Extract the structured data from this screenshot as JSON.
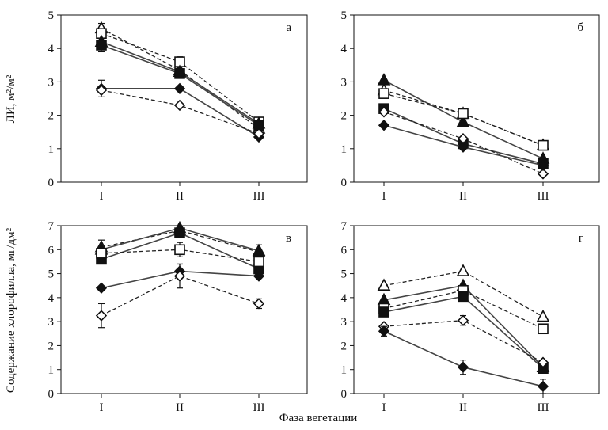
{
  "figure": {
    "ylabel_top": "ЛИ, м²/м²",
    "ylabel_bottom": "Содержание хлорофилла, мг/дм²",
    "xlabel": "Фаза вегетации"
  },
  "chart_data": [
    {
      "type": "line",
      "panel": "а",
      "categories": [
        "I",
        "II",
        "III"
      ],
      "ylim": [
        0,
        5
      ],
      "yticks": [
        0,
        1,
        2,
        3,
        4,
        5
      ],
      "series": [
        {
          "name": "open triangle, dashed",
          "marker": "triangle-open",
          "dash": true,
          "values": [
            4.6,
            3.35,
            1.6
          ],
          "errors": [
            0.15,
            0,
            0
          ]
        },
        {
          "name": "open square, dashed",
          "marker": "square-open",
          "dash": true,
          "values": [
            4.45,
            3.6,
            1.8
          ],
          "errors": [
            0,
            0.15,
            0
          ]
        },
        {
          "name": "filled triangle, solid",
          "marker": "triangle-filled",
          "dash": false,
          "values": [
            4.2,
            3.3,
            1.75
          ],
          "errors": [
            0,
            0,
            0
          ]
        },
        {
          "name": "filled square, solid",
          "marker": "square-filled",
          "dash": false,
          "values": [
            4.1,
            3.25,
            1.7
          ],
          "errors": [
            0.2,
            0,
            0
          ]
        },
        {
          "name": "filled diamond, solid",
          "marker": "diamond-filled",
          "dash": false,
          "values": [
            2.8,
            2.8,
            1.35
          ],
          "errors": [
            0.25,
            0,
            0
          ]
        },
        {
          "name": "open diamond, dashed",
          "marker": "diamond-open",
          "dash": true,
          "values": [
            2.75,
            2.3,
            1.45
          ],
          "errors": [
            0,
            0,
            0
          ]
        }
      ]
    },
    {
      "type": "line",
      "panel": "б",
      "categories": [
        "I",
        "II",
        "III"
      ],
      "ylim": [
        0,
        5
      ],
      "yticks": [
        0,
        1,
        2,
        3,
        4,
        5
      ],
      "series": [
        {
          "name": "filled triangle, solid",
          "marker": "triangle-filled",
          "dash": false,
          "values": [
            3.05,
            1.8,
            0.7
          ],
          "errors": [
            0,
            0,
            0
          ]
        },
        {
          "name": "open triangle, dashed",
          "marker": "triangle-open",
          "dash": true,
          "values": [
            2.75,
            2.05,
            1.1
          ],
          "errors": [
            0,
            0,
            0
          ]
        },
        {
          "name": "open square, dashed",
          "marker": "square-open",
          "dash": true,
          "values": [
            2.65,
            2.05,
            1.1
          ],
          "errors": [
            0,
            0.15,
            0
          ]
        },
        {
          "name": "filled square, solid",
          "marker": "square-filled",
          "dash": false,
          "values": [
            2.2,
            1.15,
            0.55
          ],
          "errors": [
            0,
            0,
            0
          ]
        },
        {
          "name": "open diamond, dashed",
          "marker": "diamond-open",
          "dash": true,
          "values": [
            2.1,
            1.3,
            0.25
          ],
          "errors": [
            0,
            0,
            0
          ]
        },
        {
          "name": "filled diamond, solid",
          "marker": "diamond-filled",
          "dash": false,
          "values": [
            1.7,
            1.05,
            0.5
          ],
          "errors": [
            0,
            0,
            0
          ]
        }
      ]
    },
    {
      "type": "line",
      "panel": "в",
      "categories": [
        "I",
        "II",
        "III"
      ],
      "ylim": [
        0,
        7
      ],
      "yticks": [
        0,
        1,
        2,
        3,
        4,
        5,
        6,
        7
      ],
      "series": [
        {
          "name": "open triangle, dashed",
          "marker": "triangle-open",
          "dash": true,
          "values": [
            6.1,
            6.8,
            5.9
          ],
          "errors": [
            0.3,
            0,
            0.3
          ]
        },
        {
          "name": "filled triangle, solid",
          "marker": "triangle-filled",
          "dash": false,
          "values": [
            6.0,
            6.9,
            5.95
          ],
          "errors": [
            0,
            0,
            0
          ]
        },
        {
          "name": "filled square, solid",
          "marker": "square-filled",
          "dash": false,
          "values": [
            5.6,
            6.7,
            5.2
          ],
          "errors": [
            0,
            0,
            0
          ]
        },
        {
          "name": "open square, dashed",
          "marker": "square-open",
          "dash": true,
          "values": [
            5.85,
            6.0,
            5.5
          ],
          "errors": [
            0,
            0.3,
            0
          ]
        },
        {
          "name": "filled diamond, solid",
          "marker": "diamond-filled",
          "dash": false,
          "values": [
            4.4,
            5.1,
            4.9
          ],
          "errors": [
            0,
            0.3,
            0
          ]
        },
        {
          "name": "open diamond, dashed",
          "marker": "diamond-open",
          "dash": true,
          "values": [
            3.25,
            4.9,
            3.75
          ],
          "errors": [
            0.5,
            0.5,
            0.2
          ]
        }
      ]
    },
    {
      "type": "line",
      "panel": "г",
      "categories": [
        "I",
        "II",
        "III"
      ],
      "ylim": [
        0,
        7
      ],
      "yticks": [
        0,
        1,
        2,
        3,
        4,
        5,
        6,
        7
      ],
      "series": [
        {
          "name": "open triangle, dashed",
          "marker": "triangle-open",
          "dash": true,
          "values": [
            4.5,
            5.1,
            3.2
          ],
          "errors": [
            0,
            0,
            0
          ]
        },
        {
          "name": "filled triangle, solid",
          "marker": "triangle-filled",
          "dash": false,
          "values": [
            3.9,
            4.5,
            1.1
          ],
          "errors": [
            0,
            0,
            0
          ]
        },
        {
          "name": "open square, dashed",
          "marker": "square-open",
          "dash": true,
          "values": [
            3.55,
            4.3,
            2.7
          ],
          "errors": [
            0,
            0,
            0
          ]
        },
        {
          "name": "filled square, solid",
          "marker": "square-filled",
          "dash": false,
          "values": [
            3.4,
            4.05,
            1.05
          ],
          "errors": [
            0,
            0,
            0
          ]
        },
        {
          "name": "open diamond, dashed",
          "marker": "diamond-open",
          "dash": true,
          "values": [
            2.8,
            3.05,
            1.3
          ],
          "errors": [
            0,
            0.2,
            0
          ]
        },
        {
          "name": "filled diamond, solid",
          "marker": "diamond-filled",
          "dash": false,
          "values": [
            2.6,
            1.1,
            0.3
          ],
          "errors": [
            0.2,
            0.3,
            0.3
          ]
        }
      ]
    }
  ]
}
